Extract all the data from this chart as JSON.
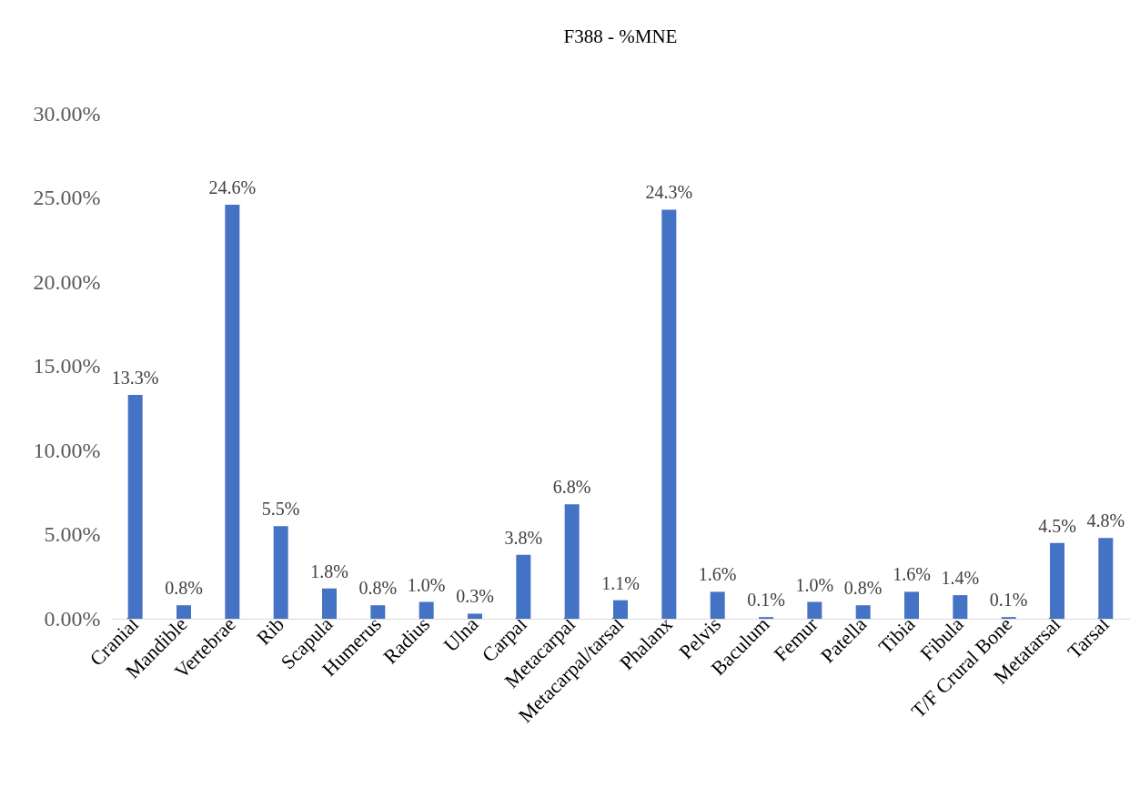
{
  "chart_data": {
    "type": "bar",
    "title": "F388 - %MNE",
    "categories": [
      "Cranial",
      "Mandible",
      "Vertebrae",
      "Rib",
      "Scapula",
      "Humerus",
      "Radius",
      "Ulna",
      "Carpal",
      "Metacarpal",
      "Metacarpal/tarsal",
      "Phalanx",
      "Pelvis",
      "Baculum",
      "Femur",
      "Patella",
      "Tibia",
      "Fibula",
      "T/F Crural Bone",
      "Metatarsal",
      "Tarsal"
    ],
    "values": [
      13.3,
      0.8,
      24.6,
      5.5,
      1.8,
      0.8,
      1.0,
      0.3,
      3.8,
      6.8,
      1.1,
      24.3,
      1.6,
      0.1,
      1.0,
      0.8,
      1.6,
      1.4,
      0.1,
      4.5,
      4.8
    ],
    "value_labels": [
      "13.3%",
      "0.8%",
      "24.6%",
      "5.5%",
      "1.8%",
      "0.8%",
      "1.0%",
      "0.3%",
      "3.8%",
      "6.8%",
      "1.1%",
      "24.3%",
      "1.6%",
      "0.1%",
      "1.0%",
      "0.8%",
      "1.6%",
      "1.4%",
      "0.1%",
      "4.5%",
      "4.8%"
    ],
    "color": "#4472c4",
    "ylim": [
      0,
      30
    ],
    "yticks": [
      {
        "value": 0,
        "label": "0.00%"
      },
      {
        "value": 5,
        "label": "5.00%"
      },
      {
        "value": 10,
        "label": "10.00%"
      },
      {
        "value": 15,
        "label": "15.00%"
      },
      {
        "value": 20,
        "label": "20.00%"
      },
      {
        "value": 25,
        "label": "25.00%"
      },
      {
        "value": 30,
        "label": "30.00%"
      }
    ],
    "grid": false
  }
}
